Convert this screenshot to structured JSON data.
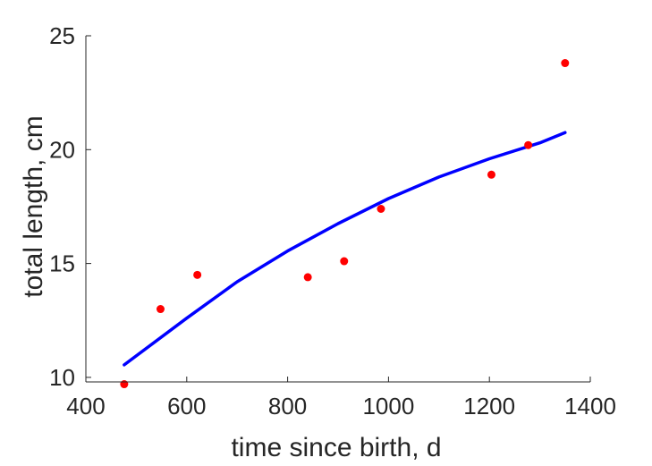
{
  "chart_data": {
    "type": "scatter",
    "title": "",
    "xlabel": "time since birth, d",
    "ylabel": "total length, cm",
    "xlim": [
      400,
      1400
    ],
    "ylim": [
      9.8,
      25
    ],
    "x_ticks": [
      400,
      600,
      800,
      1000,
      1200,
      1400
    ],
    "y_ticks": [
      10,
      15,
      20,
      25
    ],
    "grid": false,
    "legend": "none",
    "series": [
      {
        "type": "scatter",
        "color": "#ff0000",
        "points": [
          {
            "x": 476,
            "y": 9.7
          },
          {
            "x": 548,
            "y": 13.0
          },
          {
            "x": 621,
            "y": 14.5
          },
          {
            "x": 840,
            "y": 14.4
          },
          {
            "x": 912,
            "y": 15.1
          },
          {
            "x": 985,
            "y": 17.4
          },
          {
            "x": 1204,
            "y": 18.9
          },
          {
            "x": 1277,
            "y": 20.2
          },
          {
            "x": 1350,
            "y": 23.8
          }
        ]
      },
      {
        "type": "line",
        "color": "#0000ff",
        "points": [
          {
            "x": 476,
            "y": 10.55
          },
          {
            "x": 600,
            "y": 12.6
          },
          {
            "x": 700,
            "y": 14.2
          },
          {
            "x": 800,
            "y": 15.55
          },
          {
            "x": 900,
            "y": 16.75
          },
          {
            "x": 1000,
            "y": 17.85
          },
          {
            "x": 1100,
            "y": 18.8
          },
          {
            "x": 1200,
            "y": 19.6
          },
          {
            "x": 1300,
            "y": 20.3
          },
          {
            "x": 1350,
            "y": 20.75
          }
        ]
      }
    ]
  }
}
